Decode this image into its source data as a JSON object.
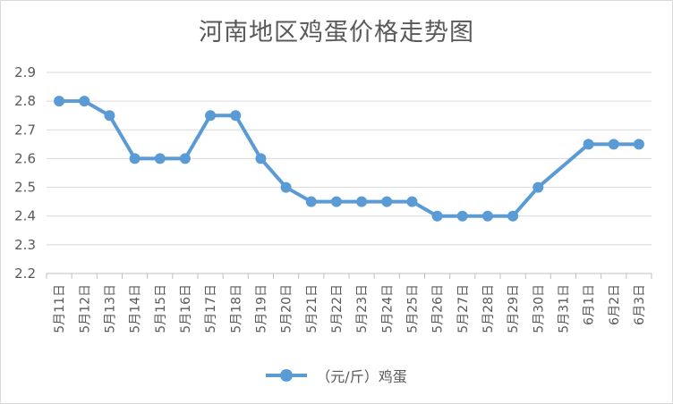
{
  "chart_data": {
    "type": "line",
    "title": "河南地区鸡蛋价格走势图",
    "categories": [
      "5月11日",
      "5月12日",
      "5月13日",
      "5月14日",
      "5月15日",
      "5月16日",
      "5月17日",
      "5月18日",
      "5月19日",
      "5月20日",
      "5月21日",
      "5月22日",
      "5月23日",
      "5月24日",
      "5月25日",
      "5月26日",
      "5月27日",
      "5月28日",
      "5月29日",
      "5月30日",
      "5月31日",
      "6月1日",
      "6月2日",
      "6月3日"
    ],
    "series": [
      {
        "name": "（元/斤）鸡蛋",
        "color": "#5b9bd5",
        "values": [
          2.8,
          2.8,
          2.75,
          2.6,
          2.6,
          2.6,
          2.75,
          2.75,
          2.6,
          2.5,
          2.45,
          2.45,
          2.45,
          2.45,
          2.45,
          2.4,
          2.4,
          2.4,
          2.4,
          2.5,
          null,
          2.65,
          2.65,
          2.65
        ]
      }
    ],
    "yticks": [
      "2.2",
      "2.3",
      "2.4",
      "2.5",
      "2.6",
      "2.7",
      "2.8",
      "2.9"
    ],
    "ylim": [
      2.2,
      2.9
    ],
    "xlabel": "",
    "ylabel": "",
    "grid": true,
    "legend": "bottom"
  }
}
